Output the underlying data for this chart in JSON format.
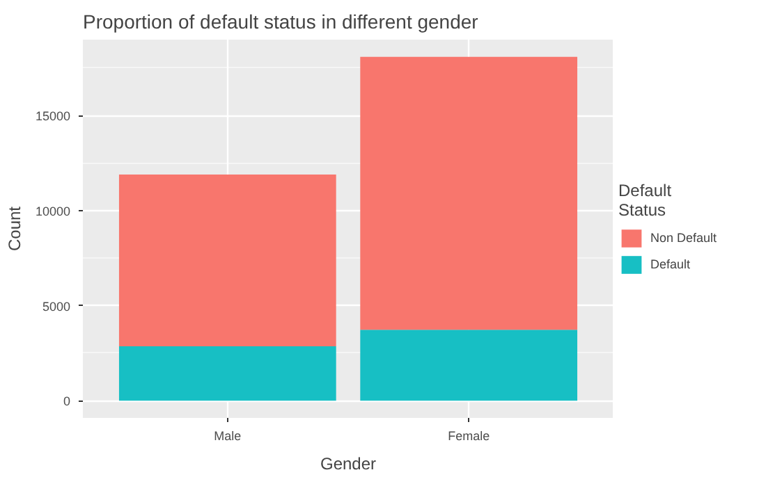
{
  "chart_data": {
    "type": "bar",
    "title": "Proportion of default status in different gender",
    "xlabel": "Gender",
    "ylabel": "Count",
    "legend_title": "Default\nStatus",
    "categories": [
      "Male",
      "Female"
    ],
    "stacked": true,
    "series": [
      {
        "name": "Default",
        "color": "#17bfc4",
        "values": [
          2860,
          3730
        ]
      },
      {
        "name": "Non Default",
        "color": "#f8766d",
        "values": [
          9040,
          14360
        ]
      }
    ],
    "ylim": [
      -905,
      18995
    ],
    "yticks": [
      0,
      5000,
      10000,
      15000
    ],
    "grid": true,
    "legend": "right"
  }
}
